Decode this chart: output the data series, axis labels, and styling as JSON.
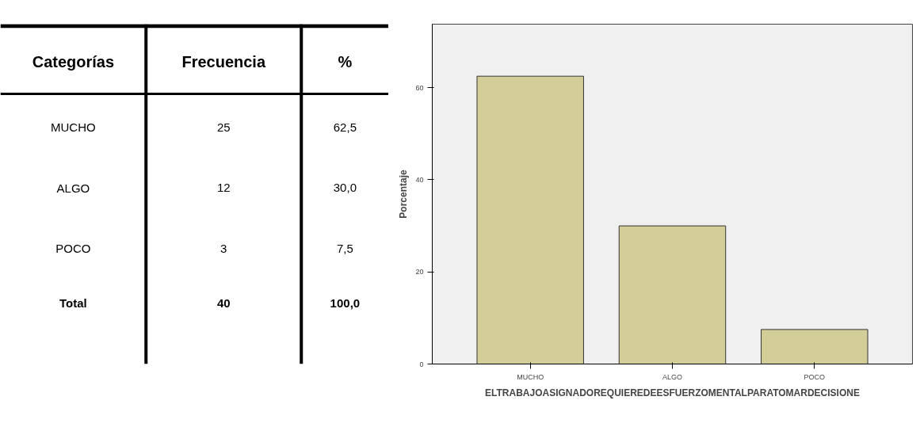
{
  "chart_data": [
    {
      "type": "other",
      "xlabel": "Categorías",
      "categories": [
        "MUCHO",
        "ALGO",
        "POCO",
        "Total"
      ],
      "series": [
        {
          "name": "Frecuencia",
          "values": [
            25,
            12,
            3,
            40
          ],
          "value_labels": [
            "25",
            "12",
            "3",
            "40"
          ]
        },
        {
          "name": "%",
          "values": [
            62.5,
            30.0,
            7.5,
            100.0
          ],
          "value_labels": [
            "62,5",
            "30,0",
            "7,5",
            "100,0"
          ]
        }
      ]
    },
    {
      "type": "bar",
      "categories": [
        "MUCHO",
        "ALGO",
        "POCO"
      ],
      "values": [
        62.5,
        30.0,
        7.5
      ],
      "color": "#d3ce97",
      "ylim": [
        0,
        73.8
      ],
      "yticks": [
        0,
        20,
        40,
        60
      ],
      "ylabel": "Porcentaje",
      "xlabel": "ELTRABAJOASIGNADOREQUIEREDEESFUERZOMENTALPARATOMARDECISIONE",
      "grid": false
    }
  ]
}
